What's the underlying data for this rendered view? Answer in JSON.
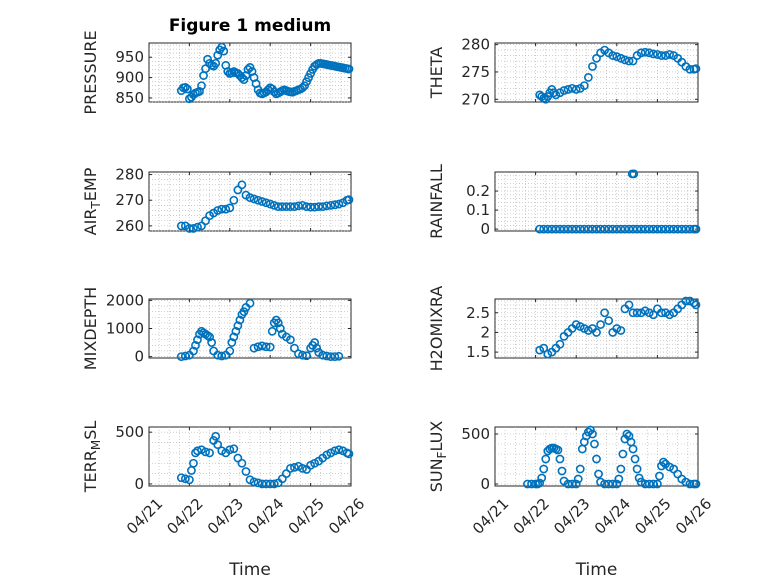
{
  "figure": {
    "title": "Figure 1 medium",
    "marker_color": "#0072bd",
    "x_tick_labels": [
      "04/21",
      "04/22",
      "04/23",
      "04/24",
      "04/25",
      "04/26"
    ]
  },
  "chart_data": [
    {
      "type": "scatter",
      "ylabel": "PRESSURE",
      "title": "Figure 1 medium",
      "xlabel": "",
      "xlim": [
        0,
        5
      ],
      "ylim": [
        840,
        985
      ],
      "yticks": [
        850,
        900,
        950
      ],
      "grid": true,
      "x": [
        0.8,
        0.85,
        0.9,
        0.95,
        1.0,
        1.05,
        1.1,
        1.15,
        1.2,
        1.25,
        1.3,
        1.35,
        1.4,
        1.45,
        1.5,
        1.55,
        1.6,
        1.65,
        1.7,
        1.75,
        1.8,
        1.85,
        1.9,
        1.95,
        2.0,
        2.05,
        2.1,
        2.15,
        2.2,
        2.25,
        2.3,
        2.35,
        2.4,
        2.45,
        2.5,
        2.55,
        2.6,
        2.65,
        2.7,
        2.75,
        2.8,
        2.85,
        2.9,
        2.95,
        3.0,
        3.05,
        3.1,
        3.15,
        3.2,
        3.25,
        3.3,
        3.35,
        3.4,
        3.45,
        3.5,
        3.55,
        3.6,
        3.65,
        3.7,
        3.75,
        3.8,
        3.85,
        3.9,
        3.95,
        4.0,
        4.05,
        4.1,
        4.15,
        4.2,
        4.25,
        4.3,
        4.35,
        4.4,
        4.45,
        4.5,
        4.55,
        4.6,
        4.65,
        4.7,
        4.75,
        4.8,
        4.85,
        4.9,
        4.95
      ],
      "y": [
        868,
        875,
        876,
        872,
        848,
        852,
        858,
        862,
        864,
        866,
        880,
        905,
        922,
        945,
        935,
        930,
        928,
        935,
        955,
        968,
        975,
        965,
        930,
        915,
        910,
        912,
        915,
        912,
        910,
        905,
        900,
        895,
        905,
        920,
        925,
        915,
        900,
        885,
        870,
        862,
        860,
        862,
        865,
        870,
        875,
        872,
        865,
        860,
        862,
        865,
        868,
        870,
        868,
        866,
        865,
        864,
        866,
        868,
        870,
        872,
        875,
        880,
        890,
        900,
        910,
        920,
        928,
        932,
        935,
        935,
        934,
        933,
        932,
        931,
        930,
        929,
        928,
        927,
        926,
        925,
        924,
        923,
        922,
        921
      ]
    },
    {
      "type": "scatter",
      "ylabel": "THETA",
      "xlabel": "",
      "xlim": [
        0,
        5
      ],
      "ylim": [
        269.5,
        280.3
      ],
      "yticks": [
        270,
        275,
        280
      ],
      "grid": true,
      "x": [
        1.1,
        1.15,
        1.2,
        1.25,
        1.3,
        1.35,
        1.4,
        1.45,
        1.5,
        1.6,
        1.7,
        1.8,
        1.9,
        2.0,
        2.1,
        2.2,
        2.3,
        2.4,
        2.5,
        2.6,
        2.7,
        2.8,
        2.9,
        3.0,
        3.1,
        3.2,
        3.3,
        3.4,
        3.5,
        3.6,
        3.7,
        3.8,
        3.9,
        4.0,
        4.1,
        4.2,
        4.3,
        4.4,
        4.5,
        4.6,
        4.7,
        4.8,
        4.9,
        4.95
      ],
      "y": [
        270.8,
        270.5,
        270.2,
        270,
        270.5,
        271.2,
        271.8,
        271.2,
        270.8,
        271.2,
        271.6,
        271.8,
        272,
        271.8,
        272,
        272.5,
        274,
        276,
        277.5,
        278.5,
        279,
        278.5,
        278,
        277.8,
        277.5,
        277.2,
        277,
        277,
        278,
        278.5,
        278.6,
        278.5,
        278.3,
        278.2,
        278,
        278,
        278.2,
        278,
        277.5,
        276.8,
        276,
        275.5,
        275.5,
        275.6
      ]
    },
    {
      "type": "scatter",
      "ylabel": "AIR_TEMP",
      "xlabel": "",
      "xlim": [
        0,
        5
      ],
      "ylim": [
        258,
        281
      ],
      "yticks": [
        260,
        270,
        280
      ],
      "grid": true,
      "x": [
        0.8,
        0.9,
        1.0,
        1.1,
        1.2,
        1.3,
        1.4,
        1.5,
        1.6,
        1.7,
        1.8,
        1.9,
        2.0,
        2.1,
        2.2,
        2.3,
        2.4,
        2.5,
        2.6,
        2.7,
        2.8,
        2.9,
        3.0,
        3.1,
        3.2,
        3.3,
        3.4,
        3.5,
        3.6,
        3.7,
        3.8,
        3.9,
        4.0,
        4.1,
        4.2,
        4.3,
        4.4,
        4.5,
        4.6,
        4.7,
        4.8,
        4.9,
        4.95
      ],
      "y": [
        260,
        260,
        259,
        259,
        259.5,
        260,
        262,
        264,
        265,
        266,
        266.5,
        266.5,
        267,
        270,
        274,
        276,
        272,
        271,
        270.5,
        270,
        269.5,
        269,
        268.5,
        268,
        267.5,
        267.5,
        267.5,
        267.5,
        267.5,
        267.8,
        268,
        267.5,
        267.3,
        267.3,
        267.5,
        267.5,
        267.8,
        268,
        268.2,
        268.5,
        269,
        270,
        270.2
      ]
    },
    {
      "type": "scatter",
      "ylabel": "RAINFALL",
      "xlabel": "",
      "xlim": [
        0,
        5
      ],
      "ylim": [
        -0.01,
        0.3
      ],
      "yticks": [
        0,
        0.1,
        0.2
      ],
      "grid": true,
      "x": [
        1.1,
        1.2,
        1.3,
        1.4,
        1.5,
        1.6,
        1.7,
        1.8,
        1.9,
        2.0,
        2.1,
        2.2,
        2.3,
        2.4,
        2.5,
        2.6,
        2.7,
        2.8,
        2.9,
        3.0,
        3.1,
        3.2,
        3.3,
        3.4,
        3.5,
        3.6,
        3.7,
        3.8,
        3.9,
        4.0,
        4.1,
        4.2,
        4.3,
        4.4,
        4.5,
        4.6,
        4.7,
        4.8,
        4.9,
        4.95,
        3.38,
        3.42
      ],
      "y": [
        0,
        0,
        0,
        0,
        0,
        0,
        0,
        0,
        0,
        0,
        0,
        0,
        0,
        0,
        0,
        0,
        0,
        0,
        0,
        0,
        0,
        0,
        0,
        0,
        0,
        0,
        0,
        0,
        0,
        0,
        0,
        0,
        0,
        0,
        0,
        0,
        0,
        0,
        0,
        0,
        0.29,
        0.29
      ]
    },
    {
      "type": "scatter",
      "ylabel": "MIXDEPTH",
      "xlabel": "",
      "xlim": [
        0,
        5
      ],
      "ylim": [
        -50,
        2050
      ],
      "yticks": [
        0,
        1000,
        2000
      ],
      "grid": true,
      "x": [
        0.8,
        0.9,
        1.0,
        1.1,
        1.15,
        1.2,
        1.25,
        1.3,
        1.35,
        1.4,
        1.45,
        1.5,
        1.55,
        1.6,
        1.7,
        1.8,
        1.9,
        2.0,
        2.05,
        2.1,
        2.15,
        2.2,
        2.25,
        2.3,
        2.35,
        2.4,
        2.5,
        2.6,
        2.7,
        2.8,
        2.9,
        3.0,
        3.05,
        3.1,
        3.15,
        3.2,
        3.25,
        3.3,
        3.4,
        3.5,
        3.6,
        3.7,
        3.8,
        3.9,
        4.0,
        4.05,
        4.1,
        4.15,
        4.2,
        4.3,
        4.4,
        4.5,
        4.6,
        4.7
      ],
      "y": [
        0,
        20,
        50,
        200,
        400,
        600,
        800,
        900,
        850,
        800,
        750,
        700,
        500,
        200,
        50,
        20,
        50,
        200,
        500,
        700,
        900,
        1100,
        1300,
        1500,
        1600,
        1750,
        1900,
        300,
        350,
        380,
        350,
        340,
        900,
        1200,
        1300,
        1200,
        1000,
        800,
        700,
        600,
        300,
        100,
        50,
        30,
        300,
        400,
        500,
        300,
        150,
        50,
        20,
        0,
        0,
        10
      ]
    },
    {
      "type": "scatter",
      "ylabel": "H2OMIXRA",
      "xlabel": "",
      "xlim": [
        0,
        5
      ],
      "ylim": [
        1.35,
        2.85
      ],
      "yticks": [
        1.5,
        2,
        2.5
      ],
      "grid": true,
      "x": [
        1.1,
        1.2,
        1.3,
        1.4,
        1.5,
        1.6,
        1.7,
        1.8,
        1.9,
        2.0,
        2.1,
        2.2,
        2.3,
        2.4,
        2.5,
        2.6,
        2.7,
        2.8,
        2.9,
        3.0,
        3.1,
        3.2,
        3.3,
        3.4,
        3.5,
        3.6,
        3.7,
        3.8,
        3.9,
        4.0,
        4.1,
        4.2,
        4.3,
        4.4,
        4.5,
        4.6,
        4.7,
        4.8,
        4.9,
        4.95
      ],
      "y": [
        1.55,
        1.6,
        1.45,
        1.5,
        1.6,
        1.7,
        1.9,
        2.0,
        2.1,
        2.2,
        2.15,
        2.1,
        2.05,
        2.1,
        2.0,
        2.2,
        2.5,
        2.3,
        2.0,
        2.1,
        2.05,
        2.6,
        2.7,
        2.5,
        2.5,
        2.5,
        2.55,
        2.5,
        2.45,
        2.6,
        2.5,
        2.5,
        2.45,
        2.5,
        2.6,
        2.7,
        2.8,
        2.8,
        2.75,
        2.7
      ]
    },
    {
      "type": "scatter",
      "ylabel": "TERR_MSL",
      "xlabel": "Time",
      "xlim": [
        0,
        5
      ],
      "ylim": [
        -20,
        550
      ],
      "yticks": [
        0,
        500
      ],
      "grid": true,
      "x": [
        0.8,
        0.9,
        1.0,
        1.05,
        1.1,
        1.15,
        1.2,
        1.3,
        1.4,
        1.5,
        1.6,
        1.65,
        1.7,
        1.8,
        1.9,
        2.0,
        2.1,
        2.2,
        2.3,
        2.4,
        2.5,
        2.6,
        2.7,
        2.8,
        2.9,
        3.0,
        3.1,
        3.2,
        3.3,
        3.4,
        3.5,
        3.6,
        3.7,
        3.8,
        3.9,
        4.0,
        4.1,
        4.2,
        4.3,
        4.4,
        4.5,
        4.6,
        4.7,
        4.8,
        4.9,
        4.95
      ],
      "y": [
        60,
        50,
        40,
        130,
        200,
        300,
        320,
        330,
        310,
        300,
        420,
        460,
        380,
        320,
        300,
        330,
        340,
        250,
        200,
        120,
        40,
        20,
        10,
        0,
        0,
        0,
        0,
        10,
        50,
        100,
        150,
        160,
        170,
        150,
        140,
        180,
        200,
        220,
        250,
        280,
        300,
        320,
        330,
        320,
        300,
        290
      ]
    },
    {
      "type": "scatter",
      "ylabel": "SUN_FLUX",
      "xlabel": "Time",
      "xlim": [
        0,
        5
      ],
      "ylim": [
        -20,
        570
      ],
      "yticks": [
        0,
        500
      ],
      "grid": true,
      "x": [
        0.8,
        0.9,
        1.0,
        1.05,
        1.1,
        1.15,
        1.2,
        1.25,
        1.3,
        1.35,
        1.4,
        1.45,
        1.5,
        1.55,
        1.6,
        1.65,
        1.7,
        1.8,
        1.9,
        2.0,
        2.05,
        2.1,
        2.15,
        2.2,
        2.25,
        2.3,
        2.35,
        2.4,
        2.45,
        2.5,
        2.55,
        2.6,
        2.7,
        2.8,
        2.9,
        3.0,
        3.05,
        3.1,
        3.15,
        3.2,
        3.25,
        3.3,
        3.35,
        3.4,
        3.45,
        3.5,
        3.55,
        3.6,
        3.7,
        3.8,
        3.9,
        4.0,
        4.05,
        4.1,
        4.15,
        4.2,
        4.3,
        4.4,
        4.5,
        4.6,
        4.7,
        4.8,
        4.9,
        4.95
      ],
      "y": [
        0,
        0,
        0,
        0,
        10,
        60,
        150,
        250,
        330,
        350,
        360,
        360,
        350,
        340,
        250,
        130,
        30,
        0,
        0,
        0,
        50,
        150,
        350,
        420,
        480,
        520,
        540,
        500,
        400,
        250,
        100,
        20,
        0,
        0,
        0,
        0,
        50,
        150,
        300,
        450,
        500,
        480,
        420,
        350,
        250,
        150,
        60,
        20,
        0,
        0,
        0,
        0,
        80,
        180,
        220,
        200,
        170,
        150,
        100,
        50,
        20,
        0,
        0,
        0
      ]
    }
  ]
}
